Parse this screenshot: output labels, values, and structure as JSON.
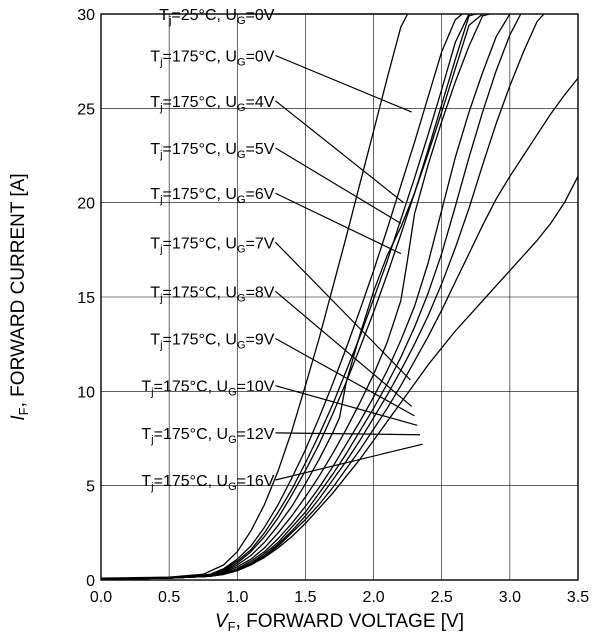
{
  "chart_data": {
    "type": "line",
    "title": "",
    "xlabel": {
      "sym": "V",
      "sub": "F",
      "rest": ", FORWARD VOLTAGE [V]"
    },
    "ylabel": {
      "sym": "I",
      "sub": "F",
      "rest": ", FORWARD CURRENT [A]"
    },
    "xlim": [
      0,
      3.5
    ],
    "ylim": [
      0,
      30
    ],
    "xticks": [
      "0.0",
      "0.5",
      "1.0",
      "1.5",
      "2.0",
      "2.5",
      "3.0",
      "3.5"
    ],
    "yticks": [
      "0",
      "5",
      "10",
      "15",
      "20",
      "25",
      "30"
    ],
    "grid": true,
    "series": [
      {
        "name": {
          "t": "25°C",
          "ug": "0V"
        },
        "label_anchor": [
          1.28,
          30
        ],
        "curve_point": [
          2.25,
          30.0
        ],
        "x": [
          0,
          0.5,
          0.75,
          0.9,
          1.0,
          1.1,
          1.2,
          1.3,
          1.4,
          1.5,
          1.6,
          1.7,
          1.8,
          1.9,
          2.0,
          2.1,
          2.2,
          2.25
        ],
        "y": [
          0.1,
          0.15,
          0.3,
          0.8,
          1.5,
          2.6,
          4.0,
          5.8,
          7.9,
          10.3,
          12.8,
          15.5,
          18.2,
          21.0,
          23.8,
          26.6,
          29.3,
          30
        ]
      },
      {
        "name": {
          "t": "175°C",
          "ug": "0V"
        },
        "label_anchor": [
          1.28,
          27.8
        ],
        "curve_point": [
          2.28,
          24.8
        ],
        "x": [
          0,
          0.5,
          0.8,
          0.9,
          1.0,
          1.1,
          1.2,
          1.3,
          1.4,
          1.5,
          1.6,
          1.7,
          1.8,
          1.9,
          2.0,
          2.1,
          2.2,
          2.3,
          2.4,
          2.5,
          2.6,
          2.65
        ],
        "y": [
          0.05,
          0.1,
          0.3,
          0.6,
          1.1,
          1.8,
          2.8,
          4.0,
          5.4,
          6.9,
          8.6,
          10.4,
          12.3,
          14.3,
          16.4,
          18.6,
          20.9,
          23.2,
          25.6,
          28.0,
          29.7,
          30
        ]
      },
      {
        "name": {
          "t": "175°C",
          "ug": "4V"
        },
        "label_anchor": [
          1.28,
          25.4
        ],
        "curve_point": [
          2.22,
          20.0
        ],
        "x": [
          0,
          0.5,
          0.8,
          0.9,
          1.0,
          1.1,
          1.2,
          1.3,
          1.4,
          1.5,
          1.6,
          1.7,
          1.8,
          1.9,
          2.0,
          2.1,
          2.2,
          2.3,
          2.4,
          2.5,
          2.6,
          2.7
        ],
        "y": [
          0.05,
          0.1,
          0.25,
          0.55,
          1.0,
          1.6,
          2.5,
          3.6,
          4.8,
          6.2,
          7.7,
          9.3,
          11.1,
          12.9,
          14.9,
          16.9,
          19.1,
          21.3,
          23.6,
          26.0,
          28.5,
          30
        ]
      },
      {
        "name": {
          "t": "175°C",
          "ug": "5V"
        },
        "label_anchor": [
          1.28,
          22.9
        ],
        "curve_point": [
          2.2,
          18.9
        ],
        "x": [
          0,
          0.5,
          0.8,
          0.9,
          1.0,
          1.1,
          1.2,
          1.3,
          1.4,
          1.5,
          1.6,
          1.7,
          1.8,
          1.9,
          2.0,
          2.1,
          2.2,
          2.3,
          2.4,
          2.5,
          2.6,
          2.7,
          2.75
        ],
        "y": [
          0.05,
          0.1,
          0.25,
          0.5,
          0.9,
          1.5,
          2.3,
          3.3,
          4.5,
          5.8,
          7.2,
          8.8,
          10.5,
          12.3,
          14.2,
          16.2,
          18.3,
          20.5,
          22.8,
          25.2,
          27.6,
          29.9,
          30
        ]
      },
      {
        "name": {
          "t": "175°C",
          "ug": "6V"
        },
        "label_anchor": [
          1.28,
          20.5
        ],
        "curve_point": [
          2.2,
          17.3
        ],
        "x": [
          0,
          0.5,
          0.8,
          0.9,
          1.0,
          1.1,
          1.2,
          1.3,
          1.4,
          1.5,
          1.6,
          1.7,
          1.75,
          1.8,
          1.9,
          2.0,
          2.1,
          2.2,
          2.3,
          2.4,
          2.5,
          2.6,
          2.7,
          2.8
        ],
        "y": [
          0.05,
          0.1,
          0.2,
          0.45,
          0.8,
          1.3,
          2.0,
          2.9,
          3.9,
          5.1,
          6.4,
          7.8,
          8.6,
          10.5,
          13.0,
          15.3,
          17.2,
          18.7,
          20.5,
          22.6,
          24.8,
          27.1,
          29.4,
          30
        ]
      },
      {
        "name": {
          "t": "175°C",
          "ug": "7V"
        },
        "label_anchor": [
          1.28,
          17.9
        ],
        "curve_point": [
          2.27,
          10.6
        ],
        "x": [
          0,
          0.5,
          0.8,
          0.9,
          1.0,
          1.1,
          1.2,
          1.3,
          1.4,
          1.5,
          1.6,
          1.7,
          1.8,
          1.9,
          2.0,
          2.1,
          2.2,
          2.25,
          2.3,
          2.4,
          2.5,
          2.6,
          2.7,
          2.8,
          2.85
        ],
        "y": [
          0.05,
          0.1,
          0.2,
          0.4,
          0.7,
          1.1,
          1.7,
          2.5,
          3.4,
          4.4,
          5.5,
          6.7,
          8.0,
          9.4,
          10.9,
          12.6,
          14.8,
          17.0,
          19.4,
          22.0,
          24.3,
          26.4,
          28.3,
          29.9,
          30
        ]
      },
      {
        "name": {
          "t": "175°C",
          "ug": "8V"
        },
        "label_anchor": [
          1.28,
          15.3
        ],
        "curve_point": [
          2.28,
          9.2
        ],
        "x": [
          0,
          0.5,
          0.8,
          0.9,
          1.0,
          1.1,
          1.2,
          1.3,
          1.4,
          1.5,
          1.6,
          1.7,
          1.8,
          1.9,
          2.0,
          2.1,
          2.2,
          2.3,
          2.4,
          2.5,
          2.6,
          2.7,
          2.8,
          2.9,
          3.0
        ],
        "y": [
          0.05,
          0.1,
          0.2,
          0.35,
          0.6,
          1.0,
          1.5,
          2.2,
          3.0,
          3.9,
          4.9,
          6.0,
          7.2,
          8.4,
          9.7,
          11.1,
          12.7,
          14.5,
          16.8,
          19.6,
          22.4,
          24.8,
          26.9,
          28.8,
          30
        ]
      },
      {
        "name": {
          "t": "175°C",
          "ug": "9V"
        },
        "label_anchor": [
          1.28,
          12.8
        ],
        "curve_point": [
          2.3,
          8.7
        ],
        "x": [
          0,
          0.5,
          0.8,
          0.9,
          1.0,
          1.1,
          1.2,
          1.3,
          1.4,
          1.5,
          1.6,
          1.7,
          1.8,
          1.9,
          2.0,
          2.1,
          2.2,
          2.3,
          2.4,
          2.5,
          2.6,
          2.7,
          2.8,
          2.9,
          3.0,
          3.08
        ],
        "y": [
          0.05,
          0.1,
          0.2,
          0.35,
          0.55,
          0.9,
          1.4,
          2.0,
          2.8,
          3.6,
          4.6,
          5.6,
          6.7,
          7.9,
          9.1,
          10.4,
          11.8,
          13.4,
          15.2,
          17.3,
          19.8,
          22.4,
          24.8,
          27.0,
          28.9,
          30
        ]
      },
      {
        "name": {
          "t": "175°C",
          "ug": "10V"
        },
        "label_anchor": [
          1.28,
          10.3
        ],
        "curve_point": [
          2.32,
          8.2
        ],
        "x": [
          0,
          0.5,
          0.8,
          0.9,
          1.0,
          1.1,
          1.2,
          1.3,
          1.4,
          1.5,
          1.6,
          1.7,
          1.8,
          1.9,
          2.0,
          2.1,
          2.2,
          2.3,
          2.4,
          2.5,
          2.6,
          2.7,
          2.8,
          2.9,
          3.0,
          3.1,
          3.2,
          3.25
        ],
        "y": [
          0.05,
          0.1,
          0.2,
          0.3,
          0.5,
          0.85,
          1.3,
          1.9,
          2.6,
          3.4,
          4.3,
          5.3,
          6.3,
          7.4,
          8.6,
          9.8,
          11.1,
          12.5,
          14.0,
          15.7,
          17.6,
          19.7,
          22.0,
          24.2,
          26.2,
          28.0,
          29.6,
          30
        ]
      },
      {
        "name": {
          "t": "175°C",
          "ug": "12V"
        },
        "label_anchor": [
          1.28,
          7.8
        ],
        "curve_point": [
          2.34,
          7.7
        ],
        "x": [
          0,
          0.5,
          0.8,
          0.9,
          1.0,
          1.1,
          1.2,
          1.3,
          1.4,
          1.5,
          1.6,
          1.7,
          1.8,
          1.9,
          2.0,
          2.1,
          2.2,
          2.3,
          2.4,
          2.5,
          2.6,
          2.7,
          2.8,
          2.9,
          3.0,
          3.1,
          3.2,
          3.3,
          3.4,
          3.5
        ],
        "y": [
          0.05,
          0.1,
          0.2,
          0.3,
          0.5,
          0.8,
          1.25,
          1.8,
          2.5,
          3.2,
          4.0,
          4.9,
          5.9,
          6.9,
          8.0,
          9.1,
          10.3,
          11.6,
          12.9,
          14.3,
          15.8,
          17.3,
          18.8,
          20.2,
          21.4,
          22.5,
          23.6,
          24.7,
          25.7,
          26.6
        ]
      },
      {
        "name": {
          "t": "175°C",
          "ug": "16V"
        },
        "label_anchor": [
          1.28,
          5.3
        ],
        "curve_point": [
          2.36,
          7.2
        ],
        "x": [
          0,
          0.5,
          0.8,
          0.9,
          1.0,
          1.1,
          1.2,
          1.3,
          1.4,
          1.5,
          1.6,
          1.7,
          1.8,
          1.9,
          2.0,
          2.1,
          2.2,
          2.3,
          2.4,
          2.5,
          2.6,
          2.7,
          2.8,
          2.9,
          3.0,
          3.1,
          3.2,
          3.3,
          3.4,
          3.5
        ],
        "y": [
          0.05,
          0.1,
          0.2,
          0.3,
          0.5,
          0.8,
          1.2,
          1.7,
          2.3,
          3.0,
          3.8,
          4.6,
          5.5,
          6.4,
          7.4,
          8.4,
          9.4,
          10.4,
          11.4,
          12.3,
          13.2,
          14.0,
          14.8,
          15.6,
          16.4,
          17.2,
          18.0,
          18.9,
          20.0,
          21.4
        ]
      }
    ]
  }
}
